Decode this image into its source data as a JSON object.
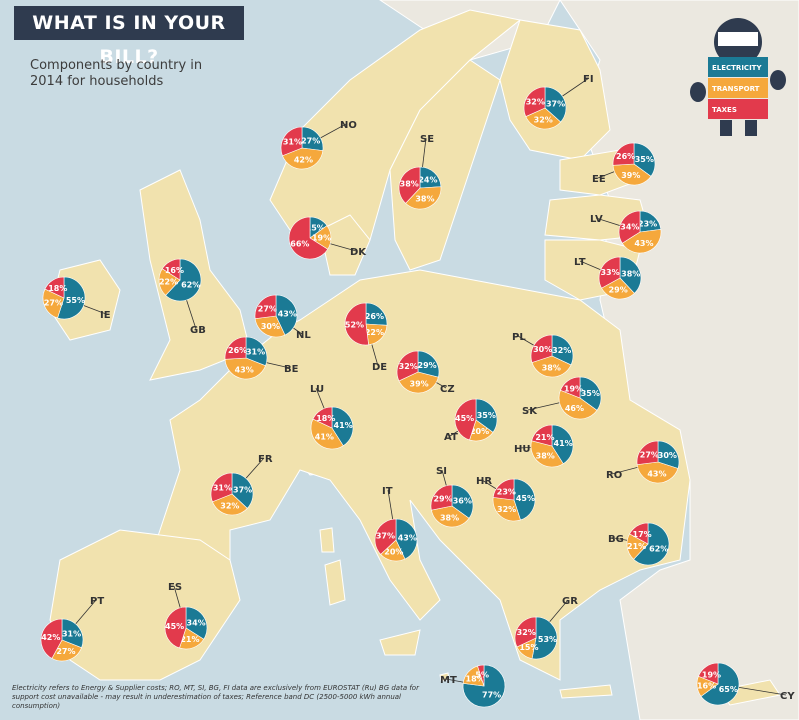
{
  "header": {
    "title": "WHAT IS IN YOUR BILL?",
    "subtitle": "Components by country in 2014 for households"
  },
  "footnote": "Electricity refers to Energy & Supplier costs; RO, MT, SI, BG, FI data are exclusively from EUROSTAT (Ru) BG data for support cost unavailable - may result in underestimation of taxes; Reference band DC (2500-5000 kWh annual consumption)",
  "legend": {
    "items": [
      {
        "label": "ELECTRICITY",
        "color": "#1b7a95"
      },
      {
        "label": "TRANSPORT",
        "color": "#f5a83c"
      },
      {
        "label": "TAXES",
        "color": "#e23a4c"
      }
    ]
  },
  "colors": {
    "sea": "#c9dbe3",
    "land": "#f1e2ae",
    "nonEU": "#ebe8e0",
    "border": "#ffffff",
    "electricity": "#1b7a95",
    "transport": "#f5a83c",
    "taxes": "#e23a4c"
  },
  "chart_data": {
    "type": "pie",
    "component_order": [
      "electricity",
      "transport",
      "taxes"
    ],
    "countries": [
      {
        "code": "FI",
        "electricity": 37,
        "transport": 32,
        "taxes": 32
      },
      {
        "code": "NO",
        "electricity": 27,
        "transport": 42,
        "taxes": 31
      },
      {
        "code": "SE",
        "electricity": 24,
        "transport": 38,
        "taxes": 38
      },
      {
        "code": "EE",
        "electricity": 35,
        "transport": 39,
        "taxes": 26
      },
      {
        "code": "LV",
        "electricity": 23,
        "transport": 43,
        "taxes": 34
      },
      {
        "code": "LT",
        "electricity": 38,
        "transport": 29,
        "taxes": 33
      },
      {
        "code": "DK",
        "electricity": 15,
        "transport": 19,
        "taxes": 66
      },
      {
        "code": "IE",
        "electricity": 55,
        "transport": 27,
        "taxes": 18
      },
      {
        "code": "GB",
        "electricity": 62,
        "transport": 22,
        "taxes": 16
      },
      {
        "code": "NL",
        "electricity": 43,
        "transport": 30,
        "taxes": 27
      },
      {
        "code": "BE",
        "electricity": 31,
        "transport": 43,
        "taxes": 26
      },
      {
        "code": "DE",
        "electricity": 26,
        "transport": 22,
        "taxes": 52
      },
      {
        "code": "PL",
        "electricity": 32,
        "transport": 38,
        "taxes": 30
      },
      {
        "code": "CZ",
        "electricity": 29,
        "transport": 39,
        "taxes": 32
      },
      {
        "code": "LU",
        "electricity": 41,
        "transport": 41,
        "taxes": 18
      },
      {
        "code": "SK",
        "electricity": 35,
        "transport": 46,
        "taxes": 19
      },
      {
        "code": "AT",
        "electricity": 35,
        "transport": 20,
        "taxes": 45
      },
      {
        "code": "HU",
        "electricity": 41,
        "transport": 38,
        "taxes": 21
      },
      {
        "code": "FR",
        "electricity": 37,
        "transport": 32,
        "taxes": 31
      },
      {
        "code": "RO",
        "electricity": 30,
        "transport": 43,
        "taxes": 27
      },
      {
        "code": "SI",
        "electricity": 36,
        "transport": 38,
        "taxes": 29
      },
      {
        "code": "HR",
        "electricity": 45,
        "transport": 32,
        "taxes": 23
      },
      {
        "code": "IT",
        "electricity": 43,
        "transport": 20,
        "taxes": 37
      },
      {
        "code": "BG",
        "electricity": 62,
        "transport": 21,
        "taxes": 17
      },
      {
        "code": "PT",
        "electricity": 31,
        "transport": 27,
        "taxes": 42
      },
      {
        "code": "ES",
        "electricity": 34,
        "transport": 21,
        "taxes": 45
      },
      {
        "code": "GR",
        "electricity": 53,
        "transport": 15,
        "taxes": 32
      },
      {
        "code": "MT",
        "electricity": 77,
        "transport": 18,
        "taxes": 5
      },
      {
        "code": "CY",
        "electricity": 65,
        "transport": 16,
        "taxes": 19
      }
    ]
  }
}
